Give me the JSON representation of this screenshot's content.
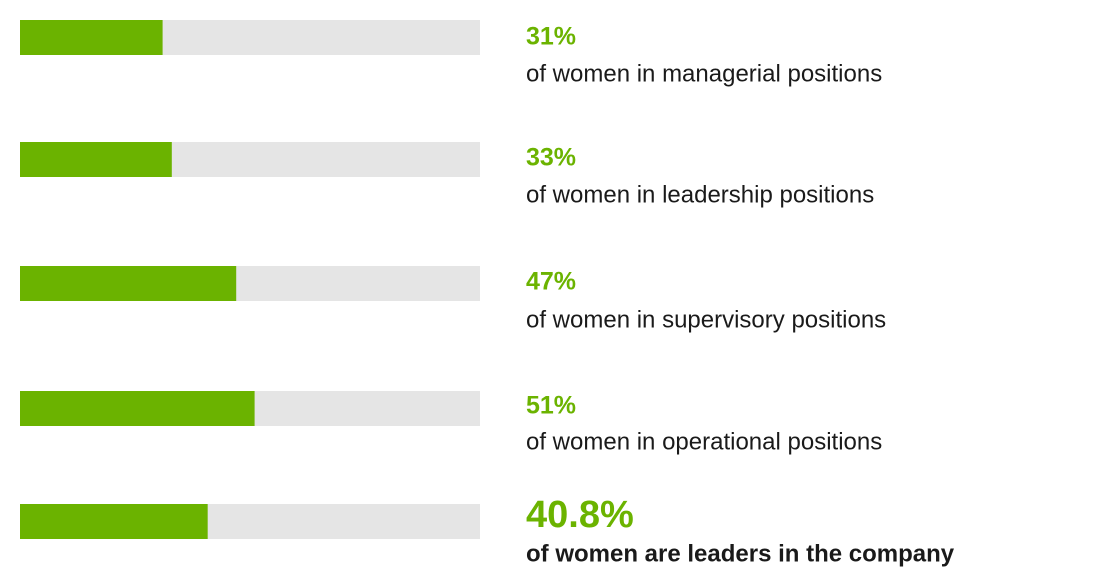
{
  "chart_data": {
    "type": "bar",
    "orientation": "horizontal",
    "categories": [
      "of women in managerial positions",
      "of women in leadership positions",
      "of women in supervisory positions",
      "of women in operational positions",
      "of women are leaders in the company"
    ],
    "values": [
      31,
      33,
      47,
      51,
      40.8
    ],
    "value_labels": [
      "31%",
      "33%",
      "47%",
      "51%",
      "40.8%"
    ],
    "color": "#6bb300",
    "track_color": "#e5e5e5",
    "xlim": [
      0,
      100
    ]
  }
}
